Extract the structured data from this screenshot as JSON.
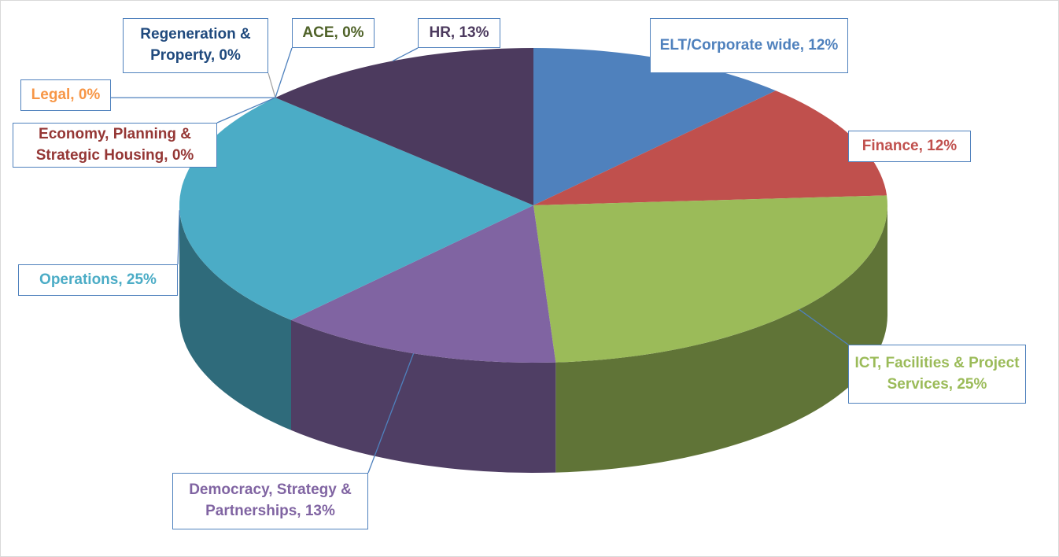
{
  "chart_data": {
    "type": "pie",
    "categories": [
      "ELT/Corporate wide",
      "Finance",
      "ICT, Facilities & Project Services",
      "Democracy, Strategy & Partnerships",
      "Operations",
      "Economy, Planning & Strategic Housing",
      "Legal",
      "Regeneration & Property",
      "ACE",
      "HR"
    ],
    "values": [
      12,
      12,
      25,
      13,
      25,
      0,
      0,
      0,
      0,
      13
    ],
    "value_labels": [
      "12%",
      "12%",
      "25%",
      "13%",
      "25%",
      "0%",
      "0%",
      "0%",
      "0%",
      "13%"
    ],
    "label_separator": ", ",
    "colors": [
      "#4f81bd",
      "#c0504d",
      "#9bbb59",
      "#8064a2",
      "#4bacc6",
      "#953735",
      "#f79646",
      "#1f497d",
      "#4f6228",
      "#4c3a5e"
    ]
  }
}
